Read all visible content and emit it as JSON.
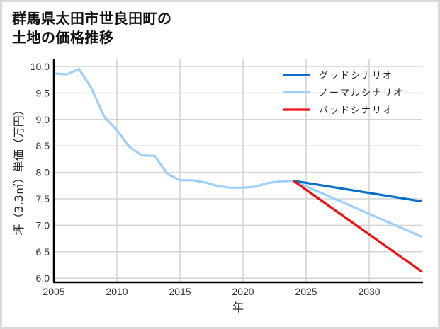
{
  "title": {
    "line1": "群馬県太田市世良田町の",
    "line2": "土地の価格推移"
  },
  "axes": {
    "xlabel": "年",
    "ylabel": "坪（3.3㎡）単価（万円）",
    "xticks": [
      "2005",
      "2010",
      "2015",
      "2020",
      "2025",
      "2030"
    ],
    "yticks": [
      "6.0",
      "6.5",
      "7.0",
      "7.5",
      "8.0",
      "8.5",
      "9.0",
      "9.5",
      "10.0"
    ]
  },
  "legend": {
    "items": [
      {
        "label": "グッドシナリオ",
        "color": "#0a6fc9"
      },
      {
        "label": "ノーマルシナリオ",
        "color": "#9ecffc"
      },
      {
        "label": "バッドシナリオ",
        "color": "#ee1111"
      }
    ]
  },
  "chart_data": {
    "type": "line",
    "title": "群馬県太田市世良田町の土地の価格推移",
    "xlabel": "年",
    "ylabel": "坪（3.3㎡）単価（万円）",
    "xlim": [
      2005,
      2034.2
    ],
    "ylim": [
      5.92,
      10.12
    ],
    "grid": true,
    "legend_position": "upper right",
    "series": [
      {
        "name": "ノーマルシナリオ",
        "color": "#9ecffc",
        "x": [
          2005,
          2006,
          2007,
          2008,
          2009,
          2010,
          2011,
          2012,
          2013,
          2014,
          2015,
          2016,
          2017,
          2018,
          2019,
          2020,
          2021,
          2022,
          2023,
          2024,
          2034.2
        ],
        "y": [
          9.87,
          9.85,
          9.95,
          9.58,
          9.05,
          8.8,
          8.48,
          8.32,
          8.31,
          7.97,
          7.85,
          7.85,
          7.81,
          7.74,
          7.71,
          7.71,
          7.73,
          7.8,
          7.83,
          7.84,
          6.78
        ]
      },
      {
        "name": "グッドシナリオ",
        "color": "#0a6fc9",
        "x": [
          2024,
          2034.2
        ],
        "y": [
          7.84,
          7.45
        ]
      },
      {
        "name": "バッドシナリオ",
        "color": "#ee1111",
        "x": [
          2024,
          2034.2
        ],
        "y": [
          7.84,
          6.12
        ]
      }
    ]
  }
}
